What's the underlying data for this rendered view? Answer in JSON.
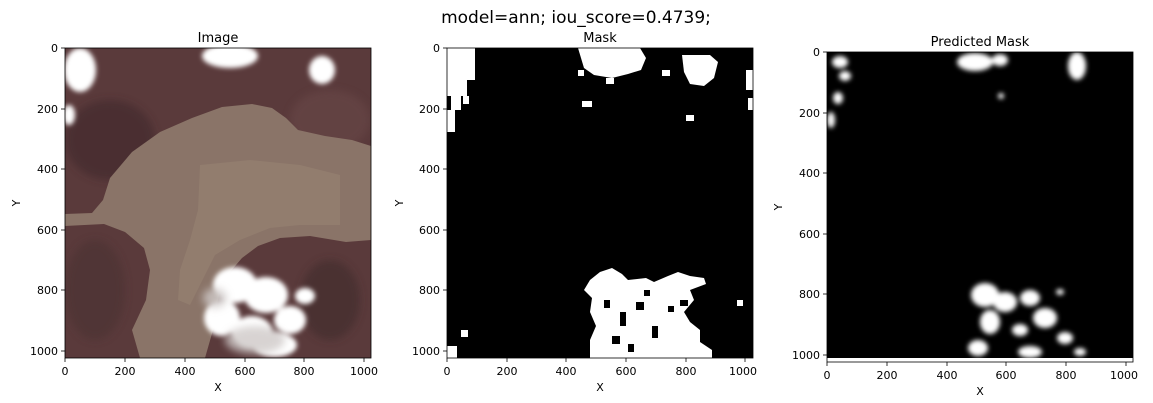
{
  "figure": {
    "suptitle": "model=ann; iou_score=0.4739;"
  },
  "chart_data": [
    {
      "type": "image",
      "title": "Image",
      "xlabel": "X",
      "ylabel": "Y",
      "xlim": [
        0,
        1024
      ],
      "ylim": [
        1024,
        0
      ],
      "xticks": [
        0,
        200,
        400,
        600,
        800,
        1000
      ],
      "yticks": [
        0,
        200,
        400,
        600,
        800,
        1000
      ],
      "colors": {
        "land": "#5a3a3b",
        "water": "#8a7468",
        "water_shallow": "#93806f",
        "cloud": "#ffffff",
        "cloud_shade": "#cfc9c8"
      }
    },
    {
      "type": "image",
      "title": "Mask",
      "xlabel": "X",
      "ylabel": "Y",
      "xlim": [
        0,
        1024
      ],
      "ylim": [
        1024,
        0
      ],
      "xticks": [
        0,
        200,
        400,
        600,
        800,
        1000
      ],
      "yticks": [
        0,
        200,
        400,
        600,
        800,
        1000
      ],
      "colors": {
        "background": "#000000",
        "mask": "#ffffff"
      }
    },
    {
      "type": "image",
      "title": "Predicted Mask",
      "xlabel": "X",
      "ylabel": "Y",
      "xlim": [
        0,
        1024
      ],
      "ylim": [
        1024,
        0
      ],
      "xticks": [
        0,
        200,
        400,
        600,
        800,
        1000
      ],
      "yticks": [
        0,
        200,
        400,
        600,
        800,
        1000
      ],
      "colors": {
        "background": "#000000",
        "mask": "#ffffff"
      }
    }
  ]
}
